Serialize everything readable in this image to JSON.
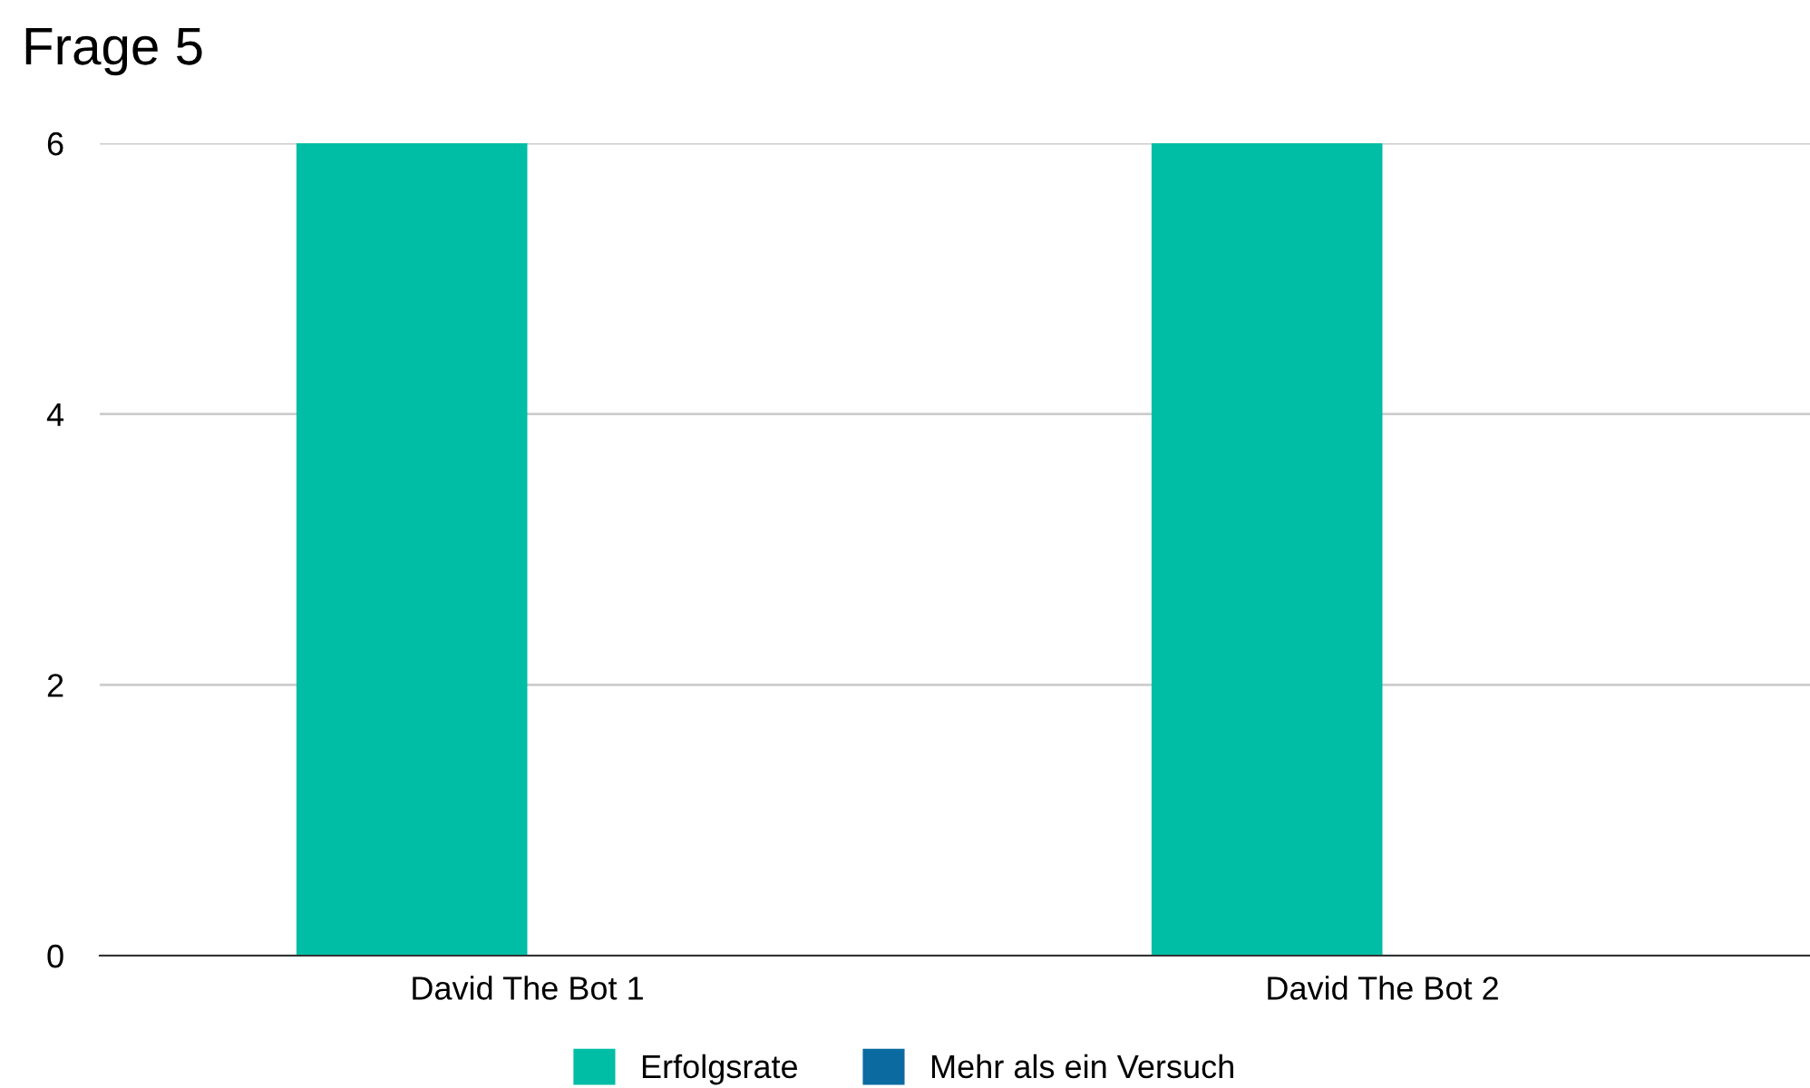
{
  "chart_data": {
    "type": "bar",
    "title": "Frage 5",
    "categories": [
      "David The Bot 1",
      "David The Bot 2"
    ],
    "series": [
      {
        "name": "Erfolgsrate",
        "color": "#00bda5",
        "values": [
          6,
          6
        ]
      },
      {
        "name": "Mehr als ein Versuch",
        "color": "#0b6ba1",
        "values": [
          0,
          0
        ]
      }
    ],
    "ylim": [
      0,
      6
    ],
    "yticks": [
      0,
      2,
      4,
      6
    ],
    "grid": "y",
    "legend": "bottom"
  }
}
